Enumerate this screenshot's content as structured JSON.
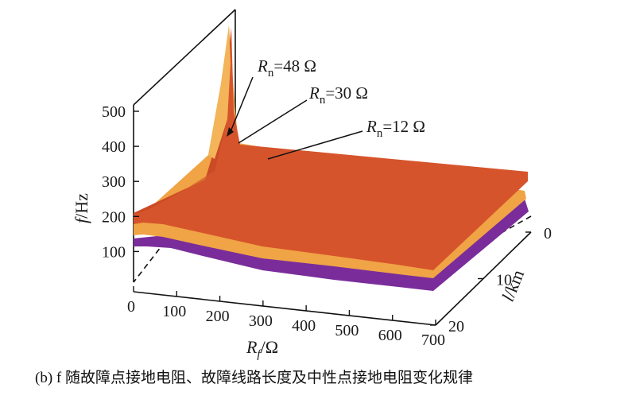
{
  "chart_data": {
    "type": "surface3d",
    "title": "",
    "caption": "(b) f 随故障点接地电阻、故障线路长度及中性点接地电阻变化规律",
    "x": {
      "symbol": "R",
      "sub": "f",
      "unit": "/Ω",
      "ticks": [
        0,
        100,
        200,
        300,
        400,
        500,
        600,
        700
      ],
      "range": [
        0,
        700
      ]
    },
    "y": {
      "symbol": "l",
      "unit": "/km",
      "ticks": [
        0,
        10,
        20
      ],
      "range": [
        0,
        20
      ]
    },
    "z": {
      "symbol": "f",
      "unit": "/Hz",
      "ticks": [
        100,
        200,
        300,
        400,
        500
      ],
      "range": [
        0,
        500
      ]
    },
    "series": [
      {
        "name": "Rn=48 Ω",
        "label_symbol": "R",
        "label_sub": "n",
        "label_value": "=48 Ω",
        "color": "#7a2d9a",
        "base_hz": 120,
        "peak_hz": 420
      },
      {
        "name": "Rn=30 Ω",
        "label_symbol": "R",
        "label_sub": "n",
        "label_value": "=30 Ω",
        "color": "#f0a445",
        "base_hz": 135,
        "peak_hz": 470
      },
      {
        "name": "Rn=12 Ω",
        "label_symbol": "R",
        "label_sub": "n",
        "label_value": "=12 Ω",
        "color": "#d6542c",
        "base_hz": 185,
        "peak_hz": 520
      }
    ]
  }
}
